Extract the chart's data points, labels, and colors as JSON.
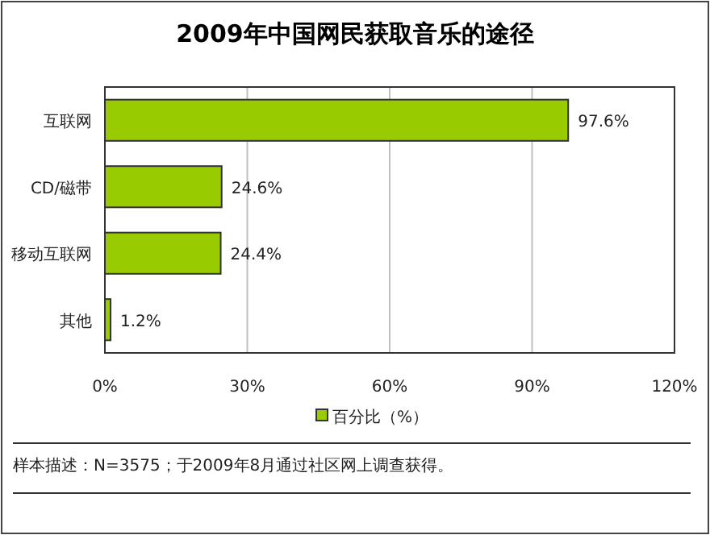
{
  "chart_data": {
    "type": "bar",
    "orientation": "horizontal",
    "title": "2009年中国网民获取音乐的途径",
    "categories": [
      "互联网",
      "CD/磁带",
      "移动互联网",
      "其他"
    ],
    "series": [
      {
        "name": "百分比（%）",
        "color": "#99cc00",
        "values": [
          97.6,
          24.6,
          24.4,
          1.2
        ],
        "value_labels": [
          "97.6%",
          "24.6%",
          "24.4%",
          "1.2%"
        ]
      }
    ],
    "xlim": [
      0,
      120
    ],
    "xticks": [
      {
        "value": 0,
        "label": "0%"
      },
      {
        "value": 30,
        "label": "30%"
      },
      {
        "value": 60,
        "label": "60%"
      },
      {
        "value": 90,
        "label": "90%"
      },
      {
        "value": 120,
        "label": "120%"
      }
    ],
    "grid": "x",
    "legend": "bottom",
    "annotations": [
      "样本描述：N=3575；于2009年8月通过社区网上调查获得。"
    ]
  }
}
